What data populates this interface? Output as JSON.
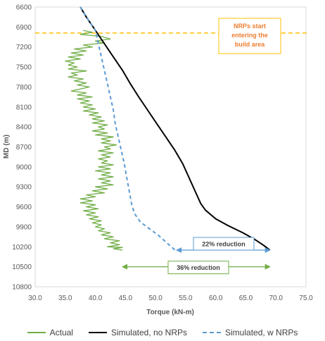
{
  "chart_data": {
    "type": "line",
    "title": "",
    "xlabel": "Torque (kN-m)",
    "ylabel": "MD (m)",
    "xlim": [
      30,
      75
    ],
    "ylim": [
      6600,
      10800
    ],
    "y_inverted": true,
    "x_ticks": [
      "30.0",
      "35.0",
      "40.0",
      "45.0",
      "50.0",
      "55.0",
      "60.0",
      "65.0",
      "70.0",
      "75.0"
    ],
    "y_ticks": [
      "6600",
      "6900",
      "7200",
      "7500",
      "7800",
      "8100",
      "8400",
      "8700",
      "9000",
      "9300",
      "9600",
      "9900",
      "10200",
      "10500",
      "10800"
    ],
    "grid": false,
    "legend_position": "bottom",
    "series": [
      {
        "name": "Actual",
        "color": "#70ad47",
        "style": "solid",
        "points": [
          [
            38.0,
            6950
          ],
          [
            39.5,
            6980
          ],
          [
            37.5,
            7010
          ],
          [
            41.0,
            7040
          ],
          [
            42.5,
            7080
          ],
          [
            40.0,
            7110
          ],
          [
            41.5,
            7140
          ],
          [
            38.0,
            7170
          ],
          [
            39.5,
            7200
          ],
          [
            36.5,
            7230
          ],
          [
            38.5,
            7260
          ],
          [
            36.0,
            7290
          ],
          [
            38.0,
            7320
          ],
          [
            35.5,
            7350
          ],
          [
            37.5,
            7380
          ],
          [
            35.0,
            7410
          ],
          [
            36.5,
            7440
          ],
          [
            35.5,
            7470
          ],
          [
            37.0,
            7500
          ],
          [
            35.5,
            7530
          ],
          [
            38.5,
            7560
          ],
          [
            36.0,
            7590
          ],
          [
            37.0,
            7620
          ],
          [
            35.5,
            7650
          ],
          [
            38.0,
            7680
          ],
          [
            36.5,
            7710
          ],
          [
            38.5,
            7740
          ],
          [
            37.0,
            7770
          ],
          [
            39.0,
            7800
          ],
          [
            37.5,
            7830
          ],
          [
            36.0,
            7860
          ],
          [
            38.5,
            7890
          ],
          [
            37.0,
            7920
          ],
          [
            39.5,
            7950
          ],
          [
            37.0,
            7980
          ],
          [
            39.0,
            8010
          ],
          [
            37.5,
            8040
          ],
          [
            39.5,
            8070
          ],
          [
            38.0,
            8100
          ],
          [
            40.0,
            8130
          ],
          [
            38.0,
            8160
          ],
          [
            40.5,
            8190
          ],
          [
            39.0,
            8220
          ],
          [
            41.0,
            8250
          ],
          [
            39.5,
            8280
          ],
          [
            41.5,
            8310
          ],
          [
            39.5,
            8340
          ],
          [
            42.0,
            8370
          ],
          [
            40.5,
            8400
          ],
          [
            41.5,
            8430
          ],
          [
            39.5,
            8460
          ],
          [
            42.0,
            8490
          ],
          [
            40.0,
            8520
          ],
          [
            43.0,
            8550
          ],
          [
            41.0,
            8580
          ],
          [
            42.5,
            8610
          ],
          [
            41.0,
            8640
          ],
          [
            43.5,
            8670
          ],
          [
            41.5,
            8700
          ],
          [
            42.5,
            8730
          ],
          [
            40.5,
            8760
          ],
          [
            43.0,
            8790
          ],
          [
            41.0,
            8820
          ],
          [
            42.5,
            8850
          ],
          [
            40.5,
            8880
          ],
          [
            42.0,
            8910
          ],
          [
            41.0,
            8940
          ],
          [
            43.0,
            8970
          ],
          [
            40.5,
            9000
          ],
          [
            42.5,
            9030
          ],
          [
            40.0,
            9060
          ],
          [
            42.5,
            9090
          ],
          [
            41.0,
            9120
          ],
          [
            43.0,
            9150
          ],
          [
            40.5,
            9180
          ],
          [
            42.5,
            9210
          ],
          [
            41.0,
            9240
          ],
          [
            43.0,
            9270
          ],
          [
            40.0,
            9300
          ],
          [
            42.0,
            9330
          ],
          [
            39.5,
            9360
          ],
          [
            41.5,
            9390
          ],
          [
            38.5,
            9420
          ],
          [
            40.0,
            9450
          ],
          [
            37.5,
            9480
          ],
          [
            39.5,
            9510
          ],
          [
            37.5,
            9540
          ],
          [
            40.0,
            9570
          ],
          [
            38.5,
            9600
          ],
          [
            40.5,
            9630
          ],
          [
            38.0,
            9660
          ],
          [
            40.0,
            9690
          ],
          [
            38.5,
            9720
          ],
          [
            40.5,
            9750
          ],
          [
            39.0,
            9780
          ],
          [
            41.0,
            9810
          ],
          [
            39.5,
            9840
          ],
          [
            41.0,
            9870
          ],
          [
            40.0,
            9900
          ],
          [
            41.5,
            9930
          ],
          [
            40.5,
            9960
          ],
          [
            42.5,
            9990
          ],
          [
            41.0,
            10020
          ],
          [
            43.0,
            10050
          ],
          [
            41.5,
            10080
          ],
          [
            44.0,
            10110
          ],
          [
            42.5,
            10140
          ],
          [
            44.0,
            10170
          ],
          [
            42.0,
            10200
          ],
          [
            44.5,
            10210
          ],
          [
            43.0,
            10230
          ],
          [
            44.5,
            10250
          ]
        ]
      },
      {
        "name": "Simulated, no NRPs",
        "color": "#000000",
        "style": "solid",
        "points": [
          [
            37.5,
            6600
          ],
          [
            38.5,
            6750
          ],
          [
            40.0,
            6950
          ],
          [
            41.5,
            7150
          ],
          [
            43.0,
            7350
          ],
          [
            44.5,
            7550
          ],
          [
            45.8,
            7750
          ],
          [
            47.2,
            7950
          ],
          [
            48.7,
            8150
          ],
          [
            50.2,
            8350
          ],
          [
            51.7,
            8550
          ],
          [
            53.2,
            8750
          ],
          [
            54.5,
            8950
          ],
          [
            55.5,
            9150
          ],
          [
            56.5,
            9350
          ],
          [
            57.5,
            9550
          ],
          [
            58.3,
            9650
          ],
          [
            60.0,
            9780
          ],
          [
            62.0,
            9880
          ],
          [
            64.5,
            9990
          ],
          [
            66.5,
            10090
          ],
          [
            68.0,
            10180
          ],
          [
            69.0,
            10250
          ]
        ]
      },
      {
        "name": "Simulated, w NRPs",
        "color": "#5b9bd5",
        "style": "dashed",
        "points": [
          [
            37.5,
            6600
          ],
          [
            38.5,
            6750
          ],
          [
            40.0,
            6950
          ],
          [
            40.5,
            7150
          ],
          [
            41.0,
            7350
          ],
          [
            41.5,
            7550
          ],
          [
            42.0,
            7750
          ],
          [
            42.5,
            7950
          ],
          [
            43.0,
            8150
          ],
          [
            43.3,
            8350
          ],
          [
            43.8,
            8550
          ],
          [
            44.3,
            8750
          ],
          [
            44.8,
            8950
          ],
          [
            45.2,
            9150
          ],
          [
            45.6,
            9350
          ],
          [
            46.0,
            9550
          ],
          [
            46.5,
            9700
          ],
          [
            47.5,
            9830
          ],
          [
            49.0,
            9930
          ],
          [
            50.5,
            10030
          ],
          [
            52.0,
            10150
          ],
          [
            53.5,
            10270
          ]
        ]
      }
    ],
    "annotations": {
      "nrp_line_md": 6990,
      "nrp_line_color": "#ffc000",
      "nrp_label_lines": [
        "NRPs start",
        "entering the",
        "build area"
      ],
      "nrp_label_color": "#ed7d31",
      "reduction_22": {
        "text": "22% reduction",
        "x_from": 53.5,
        "x_to": 69.0,
        "md": 10250,
        "color": "#5b9bd5"
      },
      "reduction_36": {
        "text": "36% reduction",
        "x_from": 44.5,
        "x_to": 69.0,
        "md": 10500,
        "color": "#70ad47"
      }
    }
  },
  "legend": {
    "actual": "Actual",
    "simulated_no": "Simulated, no NRPs",
    "simulated_w": "Simulated, w NRPs"
  }
}
